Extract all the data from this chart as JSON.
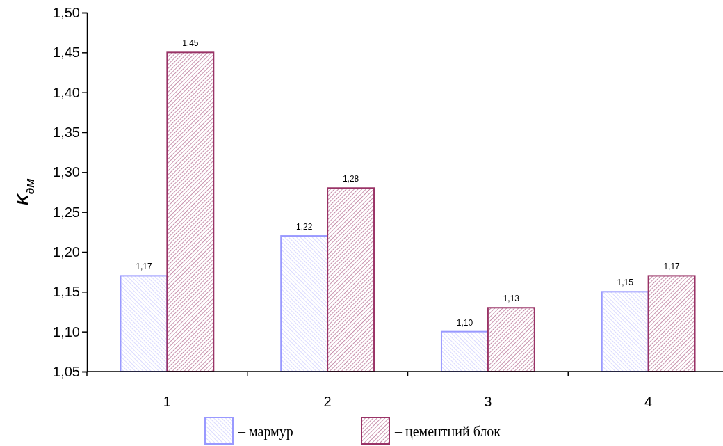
{
  "chart_data": {
    "type": "bar",
    "ylabel": "K$_{дМ}$",
    "categories": [
      "1",
      "2",
      "3",
      "4"
    ],
    "series": [
      {
        "name": "– мармур",
        "color": "#9999ff",
        "values": [
          1.17,
          1.22,
          1.1,
          1.15
        ],
        "value_labels": [
          "1,17",
          "1,22",
          "1,10",
          "1,15"
        ]
      },
      {
        "name": "–  цементний блок",
        "color": "#993366",
        "values": [
          1.45,
          1.28,
          1.13,
          1.17
        ],
        "value_labels": [
          "1,45",
          "1,28",
          "1,13",
          "1,17"
        ]
      }
    ],
    "ylim": [
      1.05,
      1.5
    ],
    "yticks": [
      {
        "value": 1.05,
        "label": "1,05"
      },
      {
        "value": 1.1,
        "label": "1,10"
      },
      {
        "value": 1.15,
        "label": "1,15"
      },
      {
        "value": 1.2,
        "label": "1,20"
      },
      {
        "value": 1.25,
        "label": "1,25"
      },
      {
        "value": 1.3,
        "label": "1,30"
      },
      {
        "value": 1.35,
        "label": "1,35"
      },
      {
        "value": 1.4,
        "label": "1,40"
      },
      {
        "value": 1.45,
        "label": "1,45"
      },
      {
        "value": 1.5,
        "label": "1,50"
      }
    ],
    "grid": false,
    "legend": "bottom"
  }
}
